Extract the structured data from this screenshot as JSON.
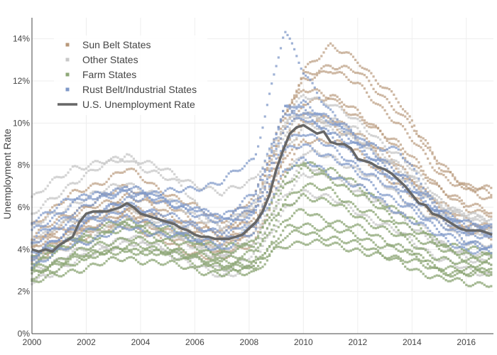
{
  "chart_data": {
    "type": "scatter",
    "title": "",
    "xlabel": "",
    "ylabel": "Unemployment Rate",
    "xlim": [
      2000,
      2017
    ],
    "ylim": [
      0,
      15
    ],
    "x_ticks": [
      {
        "value": 2000,
        "label": "2000"
      },
      {
        "value": 2002,
        "label": "2002"
      },
      {
        "value": 2004,
        "label": "2004"
      },
      {
        "value": 2006,
        "label": "2006"
      },
      {
        "value": 2008,
        "label": "2008"
      },
      {
        "value": 2010,
        "label": "2010"
      },
      {
        "value": 2012,
        "label": "2012"
      },
      {
        "value": 2014,
        "label": "2014"
      },
      {
        "value": 2016,
        "label": "2016"
      }
    ],
    "y_ticks": [
      {
        "value": 0,
        "label": "0%"
      },
      {
        "value": 2,
        "label": "2%"
      },
      {
        "value": 4,
        "label": "4%"
      },
      {
        "value": 6,
        "label": "6%"
      },
      {
        "value": 8,
        "label": "8%"
      },
      {
        "value": 10,
        "label": "10%"
      },
      {
        "value": 12,
        "label": "12%"
      },
      {
        "value": 14,
        "label": "14%"
      }
    ],
    "grid": true,
    "legend": {
      "position": "top-left",
      "entries": [
        {
          "name": "Sun Belt States",
          "symbol": "marker",
          "color": "#b8987a"
        },
        {
          "name": "Other States",
          "symbol": "marker",
          "color": "#c8c8c8"
        },
        {
          "name": "Farm States",
          "symbol": "marker",
          "color": "#8fa878"
        },
        {
          "name": "Rust Belt/Industrial States",
          "symbol": "marker",
          "color": "#7f98c8"
        },
        {
          "name": "U.S. Unemployment Rate",
          "symbol": "line",
          "color": "#666666"
        }
      ]
    },
    "series": [
      {
        "name": "Sun Belt States",
        "color": "#b8987a",
        "opacity": 0.7,
        "keyframes": [
          2000,
          2001.5,
          2003.5,
          2005.5,
          2007,
          2008.2,
          2009.3,
          2010,
          2011,
          2012,
          2013.5,
          2015,
          2016,
          2017
        ],
        "states": [
          [
            4.3,
            5.2,
            6.2,
            5.1,
            4.4,
            5.6,
            9.6,
            12.0,
            12.6,
            11.8,
            10.0,
            7.6,
            6.9,
            6.6
          ],
          [
            4.0,
            5.0,
            6.0,
            5.0,
            4.2,
            5.2,
            9.0,
            11.0,
            11.3,
            10.5,
            9.0,
            7.0,
            6.1,
            5.8
          ],
          [
            4.1,
            5.6,
            6.6,
            5.4,
            4.6,
            6.0,
            10.0,
            12.6,
            13.6,
            13.0,
            11.0,
            8.0,
            6.8,
            6.4
          ],
          [
            3.6,
            4.6,
            5.6,
            4.4,
            3.8,
            4.9,
            8.2,
            10.0,
            10.2,
            9.6,
            8.0,
            6.2,
            5.4,
            5.1
          ],
          [
            5.2,
            6.6,
            7.8,
            6.3,
            5.4,
            6.4,
            10.6,
            11.6,
            11.2,
            10.3,
            8.8,
            6.8,
            6.0,
            5.6
          ],
          [
            3.7,
            4.8,
            5.7,
            4.6,
            4.0,
            5.0,
            8.6,
            10.4,
            10.0,
            9.2,
            7.8,
            6.0,
            5.2,
            4.9
          ],
          [
            4.6,
            5.8,
            7.0,
            5.7,
            4.8,
            6.0,
            10.2,
            12.2,
            12.8,
            12.4,
            10.6,
            8.2,
            7.0,
            6.8
          ],
          [
            3.3,
            4.4,
            5.2,
            4.0,
            3.5,
            4.4,
            7.6,
            9.2,
            9.2,
            8.6,
            7.0,
            5.5,
            4.8,
            4.6
          ]
        ]
      },
      {
        "name": "Other States",
        "color": "#c8c8c8",
        "opacity": 0.8,
        "keyframes": [
          2000,
          2001.5,
          2003.5,
          2005.5,
          2007,
          2008.2,
          2009.3,
          2010,
          2011,
          2012,
          2013.5,
          2015,
          2016,
          2017
        ],
        "states": [
          [
            6.4,
            7.9,
            8.3,
            7.0,
            4.8,
            6.0,
            10.0,
            11.3,
            11.0,
            10.0,
            8.5,
            6.4,
            5.6,
            5.2
          ],
          [
            5.6,
            7.2,
            8.5,
            7.4,
            6.6,
            7.4,
            9.8,
            10.6,
            10.0,
            9.2,
            7.8,
            6.2,
            5.6,
            5.4
          ],
          [
            2.4,
            3.4,
            4.4,
            3.6,
            2.6,
            3.4,
            5.8,
            6.8,
            6.4,
            5.8,
            4.8,
            3.6,
            3.0,
            2.8
          ],
          [
            3.0,
            3.8,
            4.6,
            3.8,
            3.0,
            3.8,
            6.6,
            7.6,
            7.4,
            6.8,
            5.6,
            4.2,
            3.6,
            3.4
          ],
          [
            3.6,
            4.6,
            5.4,
            4.6,
            3.8,
            4.6,
            7.6,
            8.6,
            8.4,
            7.8,
            6.6,
            5.2,
            4.4,
            4.2
          ],
          [
            4.4,
            5.4,
            6.0,
            5.0,
            4.2,
            5.2,
            8.6,
            9.8,
            9.8,
            9.2,
            7.6,
            5.8,
            5.0,
            4.6
          ],
          [
            3.2,
            4.2,
            5.2,
            4.4,
            3.6,
            4.4,
            7.0,
            8.0,
            7.6,
            7.0,
            5.8,
            4.4,
            3.8,
            3.6
          ],
          [
            5.0,
            6.2,
            7.2,
            6.0,
            5.0,
            6.2,
            9.4,
            10.4,
            10.2,
            9.6,
            8.0,
            6.2,
            5.4,
            5.0
          ]
        ]
      },
      {
        "name": "Farm States",
        "color": "#8fa878",
        "opacity": 0.8,
        "keyframes": [
          2000,
          2001.5,
          2003.5,
          2005.5,
          2007,
          2008.2,
          2009.3,
          2010,
          2011,
          2012,
          2013.5,
          2015,
          2016,
          2017
        ],
        "states": [
          [
            2.4,
            3.0,
            3.6,
            3.2,
            2.8,
            2.9,
            4.6,
            4.8,
            4.6,
            4.2,
            3.6,
            3.0,
            2.9,
            2.8
          ],
          [
            2.6,
            3.4,
            4.0,
            3.6,
            3.0,
            3.2,
            4.9,
            5.2,
            5.0,
            4.6,
            4.0,
            3.2,
            3.0,
            3.0
          ],
          [
            3.0,
            3.8,
            4.6,
            4.0,
            3.4,
            3.6,
            6.0,
            6.6,
            6.2,
            5.6,
            4.6,
            3.6,
            3.2,
            3.4
          ],
          [
            2.9,
            3.6,
            4.2,
            3.8,
            3.2,
            3.3,
            4.2,
            4.4,
            4.2,
            4.0,
            3.4,
            2.6,
            2.4,
            2.4
          ],
          [
            3.4,
            4.4,
            5.0,
            4.3,
            3.6,
            3.8,
            6.4,
            7.0,
            6.8,
            6.0,
            5.0,
            4.0,
            3.6,
            3.5
          ],
          [
            3.3,
            4.2,
            5.2,
            4.6,
            3.8,
            4.2,
            7.0,
            7.8,
            7.4,
            6.6,
            5.4,
            4.2,
            3.8,
            3.6
          ],
          [
            2.8,
            3.6,
            4.0,
            3.8,
            3.2,
            3.2,
            5.4,
            5.8,
            5.4,
            5.0,
            4.2,
            3.0,
            2.8,
            3.0
          ],
          [
            3.6,
            4.6,
            5.4,
            4.8,
            4.0,
            4.4,
            7.4,
            8.2,
            7.8,
            7.0,
            5.8,
            4.4,
            4.0,
            3.8
          ]
        ]
      },
      {
        "name": "Rust Belt/Industrial States",
        "color": "#7f98c8",
        "opacity": 0.75,
        "keyframes": [
          2000,
          2001.5,
          2003.5,
          2005.5,
          2007,
          2008.2,
          2009.3,
          2010,
          2011,
          2012,
          2013.5,
          2015,
          2016,
          2017
        ],
        "states": [
          [
            3.6,
            5.0,
            6.4,
            6.8,
            7.2,
            8.3,
            14.4,
            12.4,
            10.6,
            9.0,
            8.8,
            5.8,
            5.0,
            5.1
          ],
          [
            4.4,
            5.8,
            6.8,
            6.0,
            5.2,
            6.0,
            10.6,
            11.0,
            10.2,
            9.4,
            7.6,
            6.0,
            5.2,
            5.0
          ],
          [
            4.8,
            6.2,
            7.0,
            6.2,
            5.4,
            6.4,
            10.4,
            10.8,
            10.0,
            9.0,
            7.4,
            5.8,
            5.0,
            4.8
          ],
          [
            3.8,
            5.0,
            6.0,
            5.2,
            4.6,
            5.6,
            9.2,
            9.6,
            8.8,
            8.0,
            6.6,
            5.2,
            4.4,
            4.2
          ],
          [
            5.4,
            6.4,
            6.8,
            6.0,
            5.6,
            6.6,
            10.8,
            10.4,
            9.4,
            8.4,
            7.0,
            5.6,
            4.8,
            4.6
          ],
          [
            3.2,
            4.2,
            5.0,
            4.6,
            4.0,
            4.8,
            7.8,
            8.2,
            7.6,
            7.0,
            5.8,
            4.6,
            4.0,
            3.8
          ],
          [
            4.2,
            5.4,
            6.2,
            5.4,
            4.8,
            5.8,
            9.8,
            10.2,
            9.6,
            8.8,
            7.2,
            5.6,
            4.8,
            4.6
          ],
          [
            3.5,
            4.6,
            5.6,
            4.8,
            4.2,
            5.2,
            8.6,
            9.0,
            8.4,
            7.6,
            6.2,
            5.0,
            4.2,
            4.0
          ]
        ]
      }
    ],
    "us_rate": {
      "name": "U.S. Unemployment Rate",
      "color": "#666666",
      "x": [
        2000.0,
        2000.25,
        2000.5,
        2000.75,
        2001.0,
        2001.25,
        2001.5,
        2001.75,
        2002.0,
        2002.25,
        2002.5,
        2002.75,
        2003.0,
        2003.25,
        2003.5,
        2003.75,
        2004.0,
        2004.25,
        2004.5,
        2004.75,
        2005.0,
        2005.25,
        2005.5,
        2005.75,
        2006.0,
        2006.25,
        2006.5,
        2006.75,
        2007.0,
        2007.25,
        2007.5,
        2007.75,
        2008.0,
        2008.25,
        2008.5,
        2008.75,
        2009.0,
        2009.25,
        2009.5,
        2009.75,
        2010.0,
        2010.25,
        2010.5,
        2010.75,
        2011.0,
        2011.25,
        2011.5,
        2011.75,
        2012.0,
        2012.25,
        2012.5,
        2012.75,
        2013.0,
        2013.25,
        2013.5,
        2013.75,
        2014.0,
        2014.25,
        2014.5,
        2014.75,
        2015.0,
        2015.25,
        2015.5,
        2015.75,
        2016.0,
        2016.25,
        2016.5,
        2016.75,
        2016.95
      ],
      "values": [
        4.0,
        3.9,
        4.0,
        3.9,
        4.2,
        4.4,
        4.6,
        5.3,
        5.7,
        5.8,
        5.8,
        5.8,
        5.9,
        6.0,
        6.2,
        6.0,
        5.7,
        5.6,
        5.5,
        5.4,
        5.3,
        5.2,
        5.0,
        4.9,
        4.7,
        4.6,
        4.6,
        4.5,
        4.5,
        4.5,
        4.6,
        4.7,
        5.0,
        5.3,
        5.8,
        6.6,
        7.8,
        8.7,
        9.5,
        9.8,
        9.9,
        9.7,
        9.5,
        9.6,
        9.1,
        9.0,
        9.0,
        8.8,
        8.3,
        8.2,
        8.1,
        7.9,
        7.8,
        7.6,
        7.3,
        7.0,
        6.6,
        6.2,
        6.1,
        5.7,
        5.6,
        5.4,
        5.2,
        5.0,
        4.9,
        4.9,
        4.9,
        4.8,
        4.7
      ]
    }
  }
}
